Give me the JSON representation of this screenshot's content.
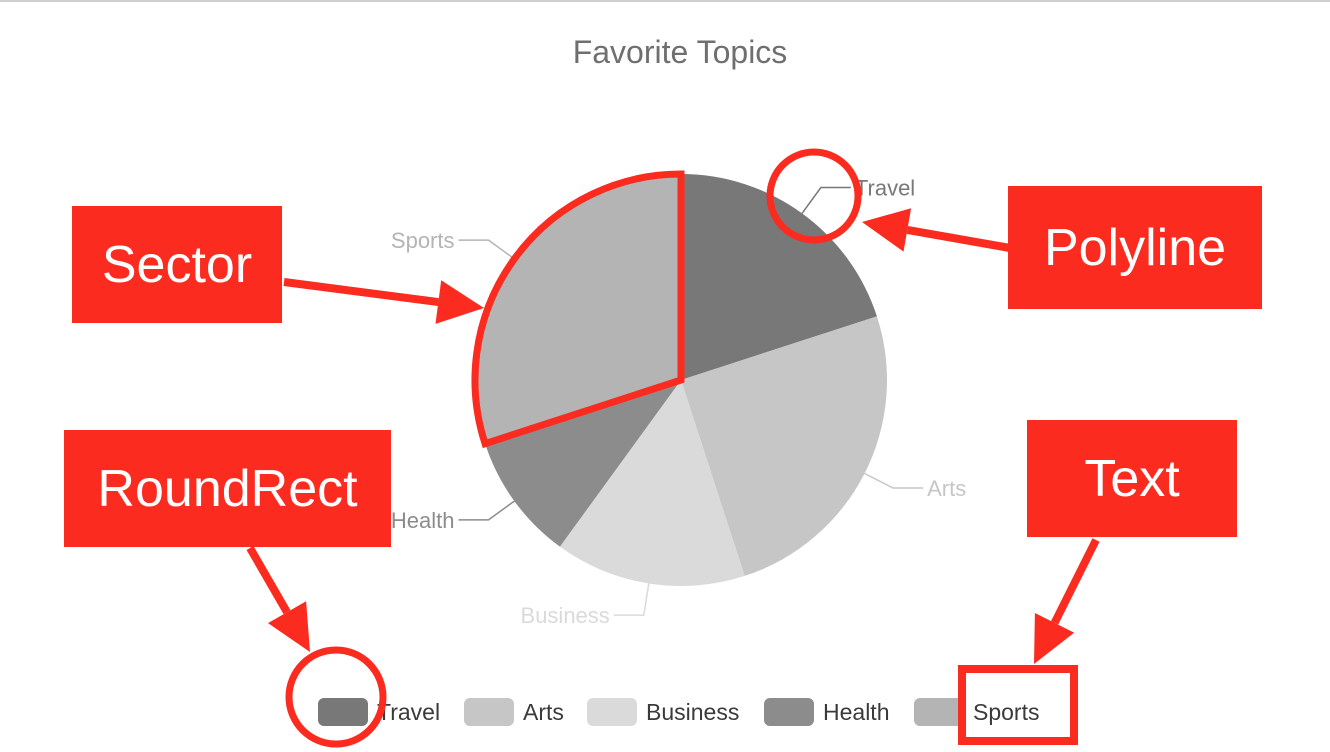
{
  "chart_data": {
    "type": "pie",
    "title": "Favorite Topics",
    "categories": [
      "Travel",
      "Arts",
      "Business",
      "Health",
      "Sports"
    ],
    "values": [
      20,
      25,
      15,
      10,
      30
    ],
    "colors": [
      "#787878",
      "#c6c6c6",
      "#dadada",
      "#8c8c8c",
      "#b4b4b4"
    ],
    "legend": "bottom"
  },
  "annotations": {
    "sector": "Sector",
    "polyline": "Polyline",
    "roundrect": "RoundRect",
    "text": "Text",
    "highlight_color": "#fb2b1f"
  }
}
